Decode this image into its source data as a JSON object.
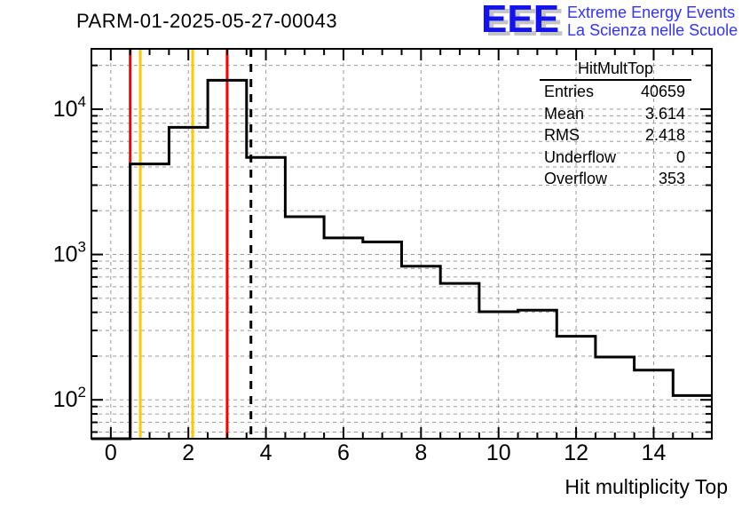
{
  "header": {
    "title": "PARM-01-2025-05-27-00043",
    "logo": {
      "acronym": "EEE",
      "line1": "Extreme Energy Events",
      "line2": "La Scienza nelle Scuole",
      "acronym_color": "#1313ee",
      "text_color": "#3333ff",
      "shadow_color": "#c4c4c4"
    }
  },
  "stats": {
    "title": "HitMultTop",
    "rows": [
      {
        "label": "Entries",
        "value": "40659"
      },
      {
        "label": "Mean",
        "value": "3.614"
      },
      {
        "label": "RMS",
        "value": "2.418"
      },
      {
        "label": "Underflow",
        "value": "0"
      },
      {
        "label": "Overflow",
        "value": "353"
      }
    ]
  },
  "chart_data": {
    "type": "bar",
    "subtype": "step-histogram",
    "title": "PARM-01-2025-05-27-00043",
    "xlabel": "Hit multiplicity Top",
    "ylabel": "",
    "y_scale": "log",
    "xlim": [
      -0.5,
      15.5
    ],
    "ylim": [
      54,
      26000
    ],
    "bin_width": 1,
    "categories": [
      0,
      1,
      2,
      3,
      4,
      5,
      6,
      7,
      8,
      9,
      10,
      11,
      12,
      13,
      14,
      15
    ],
    "values": [
      0,
      4200,
      7500,
      15800,
      4650,
      1820,
      1300,
      1220,
      830,
      633,
      404,
      414,
      274,
      197,
      160,
      107
    ],
    "x_ticks": [
      0,
      2,
      4,
      6,
      8,
      10,
      12,
      14
    ],
    "x_minor_step": 0.5,
    "y_ticks": [
      {
        "value": 100,
        "base": "10",
        "exp": "2"
      },
      {
        "value": 1000,
        "base": "10",
        "exp": "3"
      },
      {
        "value": 10000,
        "base": "10",
        "exp": "4"
      }
    ],
    "grid": true,
    "grid_color": "#9a9a9a",
    "line_color": "#000000",
    "legend": "none",
    "marker_lines": [
      {
        "x": 0.5,
        "color": "#ff0000",
        "style": "solid",
        "name": "red-marker-low"
      },
      {
        "x": 0.76,
        "color": "#ffc800",
        "style": "solid",
        "name": "yellow-marker-low"
      },
      {
        "x": 2.11,
        "color": "#ffc800",
        "style": "solid",
        "name": "yellow-marker-high"
      },
      {
        "x": 3.0,
        "color": "#ff0000",
        "style": "solid",
        "name": "red-marker-high"
      },
      {
        "x": 3.614,
        "color": "#000000",
        "style": "dashed",
        "name": "mean-marker"
      }
    ]
  }
}
